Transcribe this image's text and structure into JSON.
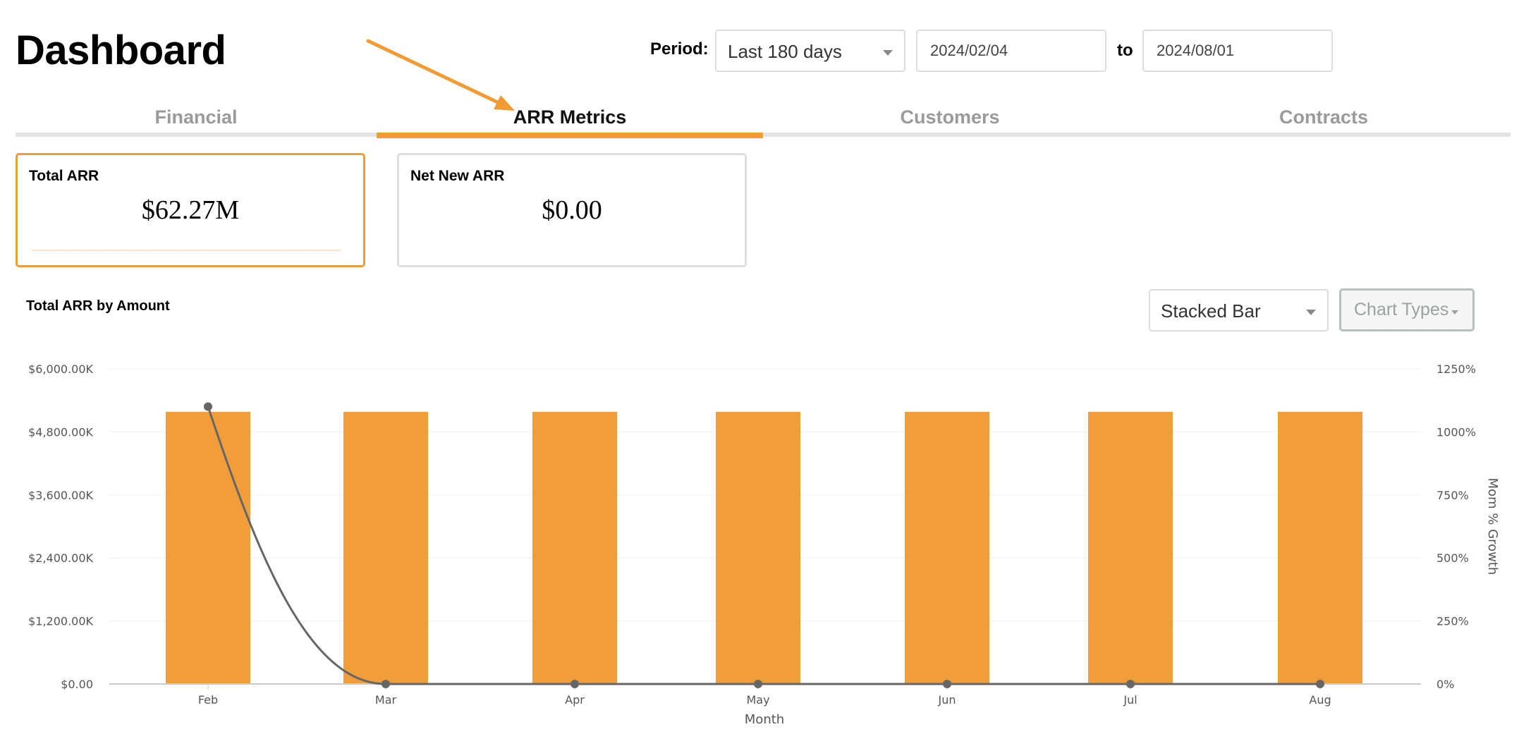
{
  "header": {
    "title": "Dashboard"
  },
  "period": {
    "label": "Period:",
    "selected": "Last 180 days",
    "from_date": "2024/02/04",
    "to_label": "to",
    "to_date": "2024/08/01"
  },
  "tabs": [
    {
      "label": "Financial",
      "active": false
    },
    {
      "label": "ARR Metrics",
      "active": true
    },
    {
      "label": "Customers",
      "active": false
    },
    {
      "label": "Contracts",
      "active": false
    }
  ],
  "kpis": [
    {
      "label": "Total ARR",
      "value": "$62.27M",
      "selected": true
    },
    {
      "label": "Net New ARR",
      "value": "$0.00",
      "selected": false
    }
  ],
  "controls": {
    "chart_type_selected": "Stacked Bar",
    "chart_types_button": "Chart Types"
  },
  "colors": {
    "accent": "#f19b34",
    "bar": "#f19e3a",
    "line": "#666666",
    "annotation_arrow": "#f19b34"
  },
  "chart_data": {
    "type": "bar",
    "title": "Total ARR by Amount",
    "xlabel": "Month",
    "ylabel": "",
    "y2label": "Mom % Growth",
    "categories": [
      "Feb",
      "Mar",
      "Apr",
      "May",
      "Jun",
      "Jul",
      "Aug"
    ],
    "series": [
      {
        "type": "bar",
        "axis": "left",
        "values": [
          5180,
          5180,
          5180,
          5180,
          5180,
          5180,
          5180
        ]
      },
      {
        "type": "line",
        "axis": "right",
        "values": [
          1100,
          0,
          0,
          0,
          0,
          0,
          0
        ]
      }
    ],
    "ylim": [
      0,
      6000
    ],
    "y2lim": [
      0,
      1250
    ],
    "yticks": [
      "$0.00",
      "$1,200.00K",
      "$2,400.00K",
      "$3,600.00K",
      "$4,800.00K",
      "$6,000.00K"
    ],
    "y2ticks": [
      "0%",
      "250%",
      "500%",
      "750%",
      "1000%",
      "1250%"
    ],
    "grid": true
  }
}
